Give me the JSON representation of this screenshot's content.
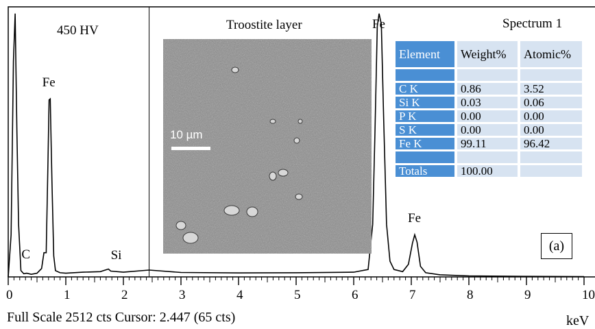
{
  "chart_data": {
    "type": "line",
    "title": "450 HV",
    "xlabel": "keV",
    "xlim": [
      0,
      10
    ],
    "ylim": [
      0,
      2512
    ],
    "x_ticks": [
      "0",
      "1",
      "2",
      "3",
      "4",
      "5",
      "6",
      "7",
      "8",
      "9",
      "10"
    ],
    "cursor_keV": 2.447,
    "spectrum": [
      [
        0,
        0
      ],
      [
        0.05,
        400
      ],
      [
        0.09,
        2050
      ],
      [
        0.12,
        2500
      ],
      [
        0.15,
        1400
      ],
      [
        0.18,
        500
      ],
      [
        0.22,
        60
      ],
      [
        0.27,
        30
      ],
      [
        0.32,
        35
      ],
      [
        0.4,
        25
      ],
      [
        0.5,
        35
      ],
      [
        0.58,
        80
      ],
      [
        0.62,
        230
      ],
      [
        0.66,
        230
      ],
      [
        0.69,
        1100
      ],
      [
        0.71,
        1680
      ],
      [
        0.73,
        1690
      ],
      [
        0.76,
        900
      ],
      [
        0.79,
        200
      ],
      [
        0.82,
        60
      ],
      [
        0.9,
        40
      ],
      [
        1.0,
        35
      ],
      [
        1.3,
        45
      ],
      [
        1.6,
        50
      ],
      [
        1.74,
        75
      ],
      [
        1.78,
        55
      ],
      [
        2.0,
        45
      ],
      [
        2.447,
        65
      ],
      [
        3,
        42
      ],
      [
        4,
        38
      ],
      [
        5,
        40
      ],
      [
        6,
        45
      ],
      [
        6.25,
        70
      ],
      [
        6.33,
        500
      ],
      [
        6.37,
        1400
      ],
      [
        6.41,
        2380
      ],
      [
        6.44,
        2500
      ],
      [
        6.48,
        2400
      ],
      [
        6.52,
        1500
      ],
      [
        6.57,
        500
      ],
      [
        6.63,
        150
      ],
      [
        6.7,
        70
      ],
      [
        6.85,
        50
      ],
      [
        6.95,
        120
      ],
      [
        7.02,
        320
      ],
      [
        7.06,
        400
      ],
      [
        7.1,
        330
      ],
      [
        7.16,
        100
      ],
      [
        7.25,
        40
      ],
      [
        7.5,
        20
      ],
      [
        8,
        10
      ],
      [
        9,
        5
      ],
      [
        10,
        3
      ]
    ],
    "peak_labels": [
      {
        "text": "C",
        "x": 0.35,
        "y": 120
      },
      {
        "text": "Fe",
        "x": 0.71,
        "y": 1750
      },
      {
        "text": "Si",
        "x": 1.9,
        "y": 110
      },
      {
        "text": "Fe",
        "x": 6.44,
        "y": 2520
      },
      {
        "text": "Fe",
        "x": 7.06,
        "y": 460
      }
    ],
    "inset": {
      "title": "Troostite layer",
      "scale_bar": "10 µm"
    },
    "table": {
      "title": "Spectrum 1",
      "headers": [
        "Element",
        "Weight%",
        "Atomic%"
      ],
      "rows": [
        [
          "",
          "",
          ""
        ],
        [
          "C K",
          "0.86",
          "3.52"
        ],
        [
          "Si K",
          "0.03",
          "0.06"
        ],
        [
          "P K",
          "0.00",
          "0.00"
        ],
        [
          "S K",
          "0.00",
          "0.00"
        ],
        [
          "Fe K",
          "99.11",
          "96.42"
        ],
        [
          "",
          "",
          ""
        ],
        [
          "Totals",
          "100.00",
          ""
        ]
      ]
    },
    "panel_label": "(a)",
    "footer": "Full Scale 2512 cts Cursor: 2.447 (65 cts)"
  }
}
